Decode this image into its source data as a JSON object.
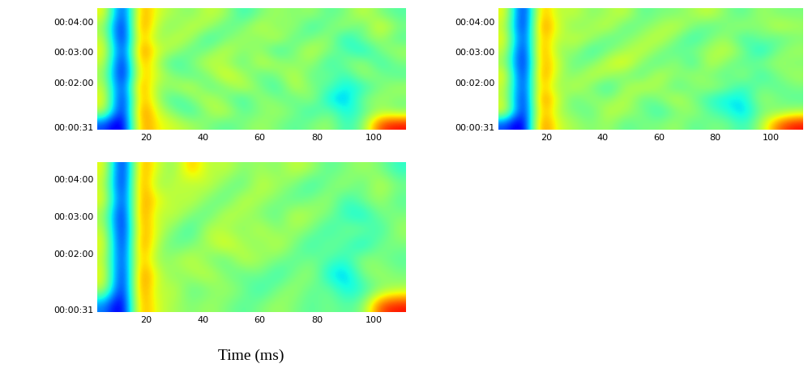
{
  "chart_data": [
    {
      "type": "heatmap",
      "xlim": [
        3,
        111
      ],
      "xticks": [
        20,
        40,
        60,
        80,
        100
      ],
      "ylim": [
        27,
        267
      ],
      "yticks": [
        {
          "value": 31,
          "label": "00:00:31"
        },
        {
          "value": 120,
          "label": "00:02:00"
        },
        {
          "value": 180,
          "label": "00:03:00"
        },
        {
          "value": 240,
          "label": "00:04:00"
        }
      ],
      "clim": [
        -1,
        1
      ],
      "cells": [
        [
          -0.6,
          -1.0,
          0.6,
          0.3,
          0.2,
          0.1,
          0.0,
          -0.1,
          0.0,
          0.1,
          0.0,
          -0.1,
          0.0,
          0.1,
          -0.2,
          0.0,
          0.7,
          0.8
        ],
        [
          0.2,
          -1.0,
          0.7,
          0.2,
          0.0,
          -0.2,
          0.1,
          0.2,
          -0.1,
          0.0,
          0.1,
          0.0,
          -0.2,
          0.0,
          -0.3,
          -0.1,
          0.1,
          0.0
        ],
        [
          0.3,
          -1.0,
          0.6,
          0.1,
          -0.2,
          0.0,
          0.2,
          0.0,
          -0.2,
          0.1,
          0.0,
          -0.1,
          0.1,
          -0.3,
          -0.4,
          0.0,
          0.1,
          0.0
        ],
        [
          0.2,
          -0.9,
          0.7,
          0.0,
          0.1,
          0.2,
          -0.1,
          0.0,
          0.2,
          0.0,
          -0.2,
          0.2,
          0.0,
          -0.1,
          -0.3,
          -0.2,
          0.0,
          0.1
        ],
        [
          0.1,
          -1.0,
          0.5,
          0.2,
          0.0,
          -0.1,
          0.0,
          0.3,
          0.1,
          -0.1,
          0.0,
          0.2,
          -0.1,
          0.0,
          -0.2,
          0.1,
          0.0,
          -0.1
        ],
        [
          0.2,
          -1.0,
          0.6,
          0.1,
          -0.2,
          0.0,
          0.2,
          0.1,
          -0.1,
          0.2,
          0.1,
          0.0,
          0.1,
          -0.2,
          0.0,
          0.1,
          -0.2,
          0.0
        ],
        [
          0.3,
          -0.9,
          0.7,
          0.2,
          0.1,
          -0.1,
          0.0,
          0.2,
          0.0,
          0.1,
          -0.2,
          0.0,
          0.2,
          0.0,
          -0.1,
          -0.3,
          0.0,
          0.1
        ],
        [
          0.2,
          -1.0,
          0.6,
          0.0,
          0.2,
          0.1,
          -0.2,
          0.0,
          0.1,
          0.0,
          0.2,
          -0.1,
          0.0,
          0.1,
          -0.3,
          0.0,
          0.1,
          -0.1
        ],
        [
          0.1,
          -1.0,
          0.7,
          0.1,
          0.0,
          0.2,
          0.1,
          -0.1,
          0.0,
          0.2,
          0.0,
          0.1,
          -0.2,
          0.0,
          0.1,
          -0.1,
          0.3,
          0.0
        ],
        [
          0.3,
          -0.9,
          0.6,
          0.2,
          0.1,
          0.0,
          0.2,
          0.1,
          -0.2,
          0.0,
          0.1,
          0.0,
          0.1,
          -0.1,
          0.0,
          0.2,
          0.0,
          -0.1
        ]
      ]
    },
    {
      "type": "heatmap",
      "xlim": [
        3,
        111
      ],
      "xticks": [
        20,
        40,
        60,
        80,
        100
      ],
      "ylim": [
        27,
        267
      ],
      "yticks": [
        {
          "value": 31,
          "label": "00:00:31"
        },
        {
          "value": 120,
          "label": "00:02:00"
        },
        {
          "value": 180,
          "label": "00:03:00"
        },
        {
          "value": 240,
          "label": "00:04:00"
        }
      ],
      "clim": [
        -1,
        1
      ],
      "cells": [
        [
          -0.6,
          -1.0,
          0.7,
          0.2,
          0.1,
          0.0,
          0.1,
          -0.1,
          0.0,
          0.0,
          0.1,
          -0.1,
          0.0,
          0.0,
          -0.2,
          0.1,
          0.6,
          0.8
        ],
        [
          0.3,
          -1.0,
          0.6,
          0.1,
          0.0,
          -0.1,
          0.2,
          0.1,
          0.0,
          -0.2,
          0.0,
          0.1,
          -0.1,
          -0.2,
          -0.4,
          0.0,
          0.0,
          0.1
        ],
        [
          0.2,
          -1.0,
          0.7,
          0.2,
          -0.1,
          0.1,
          0.0,
          0.2,
          -0.1,
          0.0,
          0.2,
          0.0,
          -0.2,
          -0.3,
          -0.3,
          0.1,
          0.0,
          -0.1
        ],
        [
          0.2,
          -0.9,
          0.6,
          0.0,
          0.2,
          0.0,
          -0.2,
          0.1,
          0.2,
          0.1,
          -0.1,
          0.0,
          0.1,
          0.0,
          -0.2,
          0.0,
          -0.1,
          0.0
        ],
        [
          0.3,
          -1.0,
          0.7,
          0.1,
          0.0,
          0.2,
          0.1,
          0.0,
          -0.1,
          0.2,
          0.0,
          0.1,
          0.0,
          -0.1,
          0.1,
          -0.2,
          0.0,
          0.1
        ],
        [
          0.1,
          -1.0,
          0.6,
          0.2,
          -0.1,
          0.0,
          0.2,
          0.3,
          0.0,
          -0.1,
          0.1,
          -0.2,
          0.2,
          0.0,
          -0.1,
          0.0,
          0.1,
          0.0
        ],
        [
          0.2,
          -1.0,
          0.7,
          0.0,
          0.1,
          -0.2,
          0.0,
          0.1,
          0.2,
          0.0,
          -0.1,
          0.0,
          0.1,
          0.2,
          0.0,
          -0.3,
          0.0,
          0.1
        ],
        [
          0.3,
          -0.9,
          0.6,
          0.1,
          0.2,
          0.1,
          -0.1,
          0.0,
          0.1,
          0.2,
          0.0,
          -0.2,
          0.0,
          0.1,
          -0.2,
          0.0,
          -0.1,
          0.0
        ],
        [
          0.2,
          -1.0,
          0.7,
          0.2,
          0.0,
          0.1,
          0.2,
          -0.1,
          0.0,
          0.1,
          0.2,
          0.0,
          -0.1,
          0.0,
          0.1,
          0.0,
          0.2,
          0.1
        ],
        [
          0.3,
          -1.0,
          0.6,
          0.1,
          0.2,
          0.0,
          0.1,
          0.2,
          -0.1,
          0.0,
          0.0,
          0.1,
          0.2,
          0.0,
          -0.1,
          0.1,
          0.0,
          0.0
        ]
      ]
    },
    {
      "type": "heatmap",
      "xlim": [
        3,
        111
      ],
      "xticks": [
        20,
        40,
        60,
        80,
        100
      ],
      "ylim": [
        27,
        267
      ],
      "yticks": [
        {
          "value": 31,
          "label": "00:00:31"
        },
        {
          "value": 120,
          "label": "00:02:00"
        },
        {
          "value": 180,
          "label": "00:03:00"
        },
        {
          "value": 240,
          "label": "00:04:00"
        }
      ],
      "clim": [
        -1,
        1
      ],
      "x_label": "Time (ms)",
      "cells": [
        [
          -0.5,
          -1.0,
          0.6,
          0.2,
          0.1,
          0.0,
          0.1,
          0.0,
          -0.1,
          0.0,
          0.1,
          0.0,
          -0.1,
          0.0,
          -0.1,
          0.0,
          0.7,
          0.8
        ],
        [
          0.2,
          -1.0,
          0.7,
          0.1,
          0.2,
          -0.1,
          0.0,
          0.1,
          0.0,
          -0.2,
          0.0,
          0.1,
          -0.1,
          0.0,
          -0.3,
          -0.2,
          0.0,
          0.1
        ],
        [
          0.3,
          -1.0,
          0.7,
          0.2,
          0.0,
          0.1,
          0.2,
          0.0,
          -0.1,
          0.0,
          -0.2,
          0.0,
          0.1,
          -0.3,
          -0.4,
          0.0,
          0.1,
          0.0
        ],
        [
          0.2,
          -0.9,
          0.6,
          0.0,
          0.1,
          0.2,
          0.0,
          -0.1,
          0.2,
          0.1,
          0.0,
          -0.1,
          0.0,
          -0.1,
          -0.2,
          0.1,
          0.0,
          -0.1
        ],
        [
          0.3,
          -1.0,
          0.7,
          0.1,
          -0.1,
          0.0,
          0.1,
          0.3,
          0.1,
          0.0,
          0.2,
          0.0,
          -0.2,
          0.0,
          -0.1,
          -0.3,
          0.0,
          0.0
        ],
        [
          0.2,
          -1.0,
          0.6,
          0.2,
          0.0,
          -0.2,
          0.2,
          0.1,
          0.0,
          0.2,
          0.0,
          0.1,
          0.0,
          -0.2,
          0.0,
          0.0,
          -0.2,
          0.1
        ],
        [
          0.1,
          -1.0,
          0.7,
          0.1,
          0.2,
          0.0,
          -0.1,
          0.2,
          0.1,
          0.0,
          -0.1,
          0.2,
          0.1,
          0.0,
          -0.2,
          -0.3,
          0.0,
          0.0
        ],
        [
          0.3,
          -0.9,
          0.6,
          0.3,
          0.1,
          0.2,
          0.0,
          -0.1,
          0.2,
          0.1,
          0.0,
          -0.1,
          0.0,
          0.1,
          -0.2,
          0.0,
          0.1,
          -0.1
        ],
        [
          0.2,
          -1.0,
          0.7,
          0.0,
          0.2,
          0.1,
          0.2,
          0.0,
          -0.1,
          0.2,
          0.1,
          0.0,
          -0.2,
          0.0,
          0.1,
          -0.1,
          0.2,
          0.0
        ],
        [
          0.3,
          -1.0,
          0.6,
          0.2,
          0.0,
          0.5,
          0.1,
          0.2,
          0.0,
          0.1,
          0.0,
          0.2,
          0.1,
          -0.1,
          0.0,
          0.1,
          0.0,
          -0.2
        ]
      ]
    }
  ]
}
